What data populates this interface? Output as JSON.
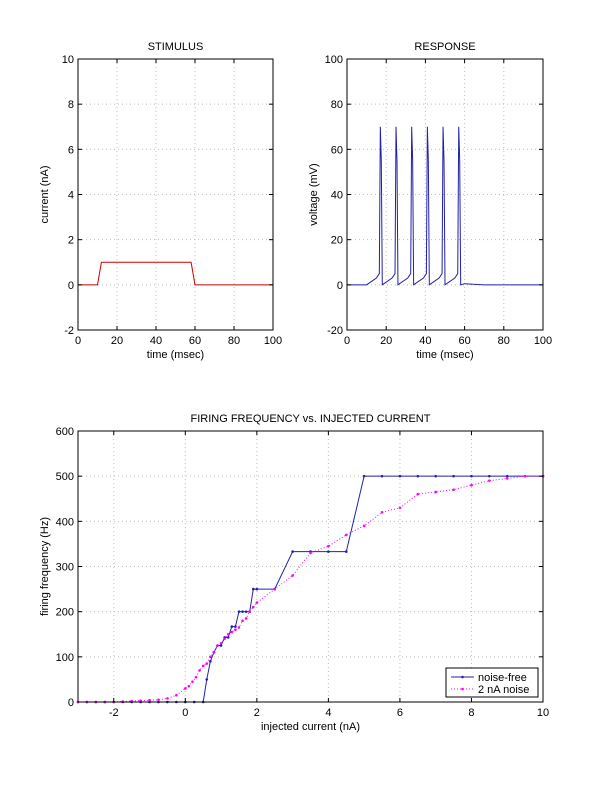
{
  "chart_data": [
    {
      "type": "line",
      "title": "STIMULUS",
      "xlabel": "time (msec)",
      "ylabel": "current (nA)",
      "xlim": [
        0,
        100
      ],
      "ylim": [
        -2,
        10
      ],
      "xticks": [
        0,
        20,
        40,
        60,
        80,
        100
      ],
      "yticks": [
        -2,
        0,
        2,
        4,
        6,
        8,
        10
      ],
      "grid": true,
      "series": [
        {
          "color": "#cc0000",
          "x": [
            0,
            10,
            12,
            58,
            60,
            100
          ],
          "y": [
            0,
            0,
            1,
            1,
            0,
            0
          ]
        }
      ]
    },
    {
      "type": "line",
      "title": "RESPONSE",
      "xlabel": "time (msec)",
      "ylabel": "voltage (mV)",
      "xlim": [
        0,
        100
      ],
      "ylim": [
        -20,
        100
      ],
      "xticks": [
        0,
        20,
        40,
        60,
        80,
        100
      ],
      "yticks": [
        -20,
        0,
        20,
        40,
        60,
        80,
        100
      ],
      "grid": true,
      "series": [
        {
          "color": "#2222aa",
          "x": [
            0,
            10,
            15,
            16.5,
            17,
            17.5,
            18,
            23,
            24.5,
            25,
            25.5,
            26,
            31,
            32.5,
            33,
            33.5,
            34,
            39,
            40.5,
            41,
            41.5,
            42,
            47,
            48.5,
            49,
            49.5,
            50,
            55,
            56.5,
            57,
            57.5,
            58,
            60,
            70,
            100
          ],
          "y": [
            0,
            0,
            3,
            5,
            70,
            55,
            0,
            3,
            5,
            70,
            55,
            0,
            3,
            5,
            70,
            55,
            0,
            3,
            5,
            70,
            55,
            0,
            3,
            5,
            70,
            55,
            0,
            3,
            5,
            70,
            55,
            0,
            0.5,
            0,
            0
          ]
        }
      ]
    },
    {
      "type": "line",
      "title": "FIRING FREQUENCY vs. INJECTED CURRENT",
      "xlabel": "injected current (nA)",
      "ylabel": "firing frequency (Hz)",
      "xlim": [
        -3,
        10
      ],
      "ylim": [
        0,
        600
      ],
      "xticks": [
        -2,
        0,
        2,
        4,
        6,
        8,
        10
      ],
      "yticks": [
        0,
        100,
        200,
        300,
        400,
        500,
        600
      ],
      "grid": true,
      "legend": "bottom-right",
      "series": [
        {
          "name": "noise-free",
          "color": "#2222aa",
          "style": "solid",
          "x": [
            -3,
            -2.75,
            -2.5,
            -2.25,
            -2,
            -1.75,
            -1.5,
            -1.25,
            -1,
            -0.75,
            -0.5,
            -0.25,
            0,
            0.25,
            0.5,
            0.6,
            0.7,
            0.8,
            0.9,
            1.0,
            1.1,
            1.2,
            1.3,
            1.4,
            1.5,
            1.6,
            1.7,
            1.8,
            1.9,
            2.0,
            2.5,
            3.0,
            3.5,
            4.0,
            4.5,
            5.0,
            5.5,
            6.0,
            6.5,
            7.0,
            7.5,
            8.0,
            8.5,
            9.0,
            9.5,
            10.0
          ],
          "y": [
            0,
            0,
            0,
            0,
            0,
            0,
            0,
            0,
            0,
            0,
            0,
            0,
            0,
            0,
            0,
            50,
            90,
            110,
            125,
            125,
            143,
            143,
            167,
            167,
            200,
            200,
            200,
            200,
            250,
            250,
            250,
            333,
            333,
            333,
            333,
            500,
            500,
            500,
            500,
            500,
            500,
            500,
            500,
            500,
            500,
            500
          ]
        },
        {
          "name": "2 nA noise",
          "color": "#ff00ff",
          "style": "dotted",
          "x": [
            -3,
            -2.75,
            -2.5,
            -2.25,
            -2,
            -1.75,
            -1.5,
            -1.25,
            -1,
            -0.75,
            -0.5,
            -0.25,
            0,
            0.1,
            0.2,
            0.3,
            0.4,
            0.5,
            0.6,
            0.7,
            0.8,
            0.9,
            1.0,
            1.1,
            1.2,
            1.3,
            1.4,
            1.5,
            1.6,
            1.7,
            1.8,
            1.9,
            2.0,
            2.5,
            3.0,
            3.5,
            4.0,
            4.5,
            5.0,
            5.5,
            6.0,
            6.5,
            7.0,
            7.5,
            8.0,
            8.5,
            9.0,
            9.5,
            10.0
          ],
          "y": [
            0,
            0,
            0,
            0,
            0,
            1,
            2,
            3,
            4,
            5,
            8,
            15,
            30,
            35,
            45,
            55,
            70,
            80,
            85,
            100,
            110,
            125,
            130,
            140,
            150,
            155,
            160,
            165,
            180,
            185,
            200,
            210,
            220,
            250,
            280,
            330,
            345,
            370,
            390,
            420,
            430,
            460,
            465,
            470,
            480,
            490,
            495,
            500,
            500
          ]
        }
      ]
    }
  ]
}
